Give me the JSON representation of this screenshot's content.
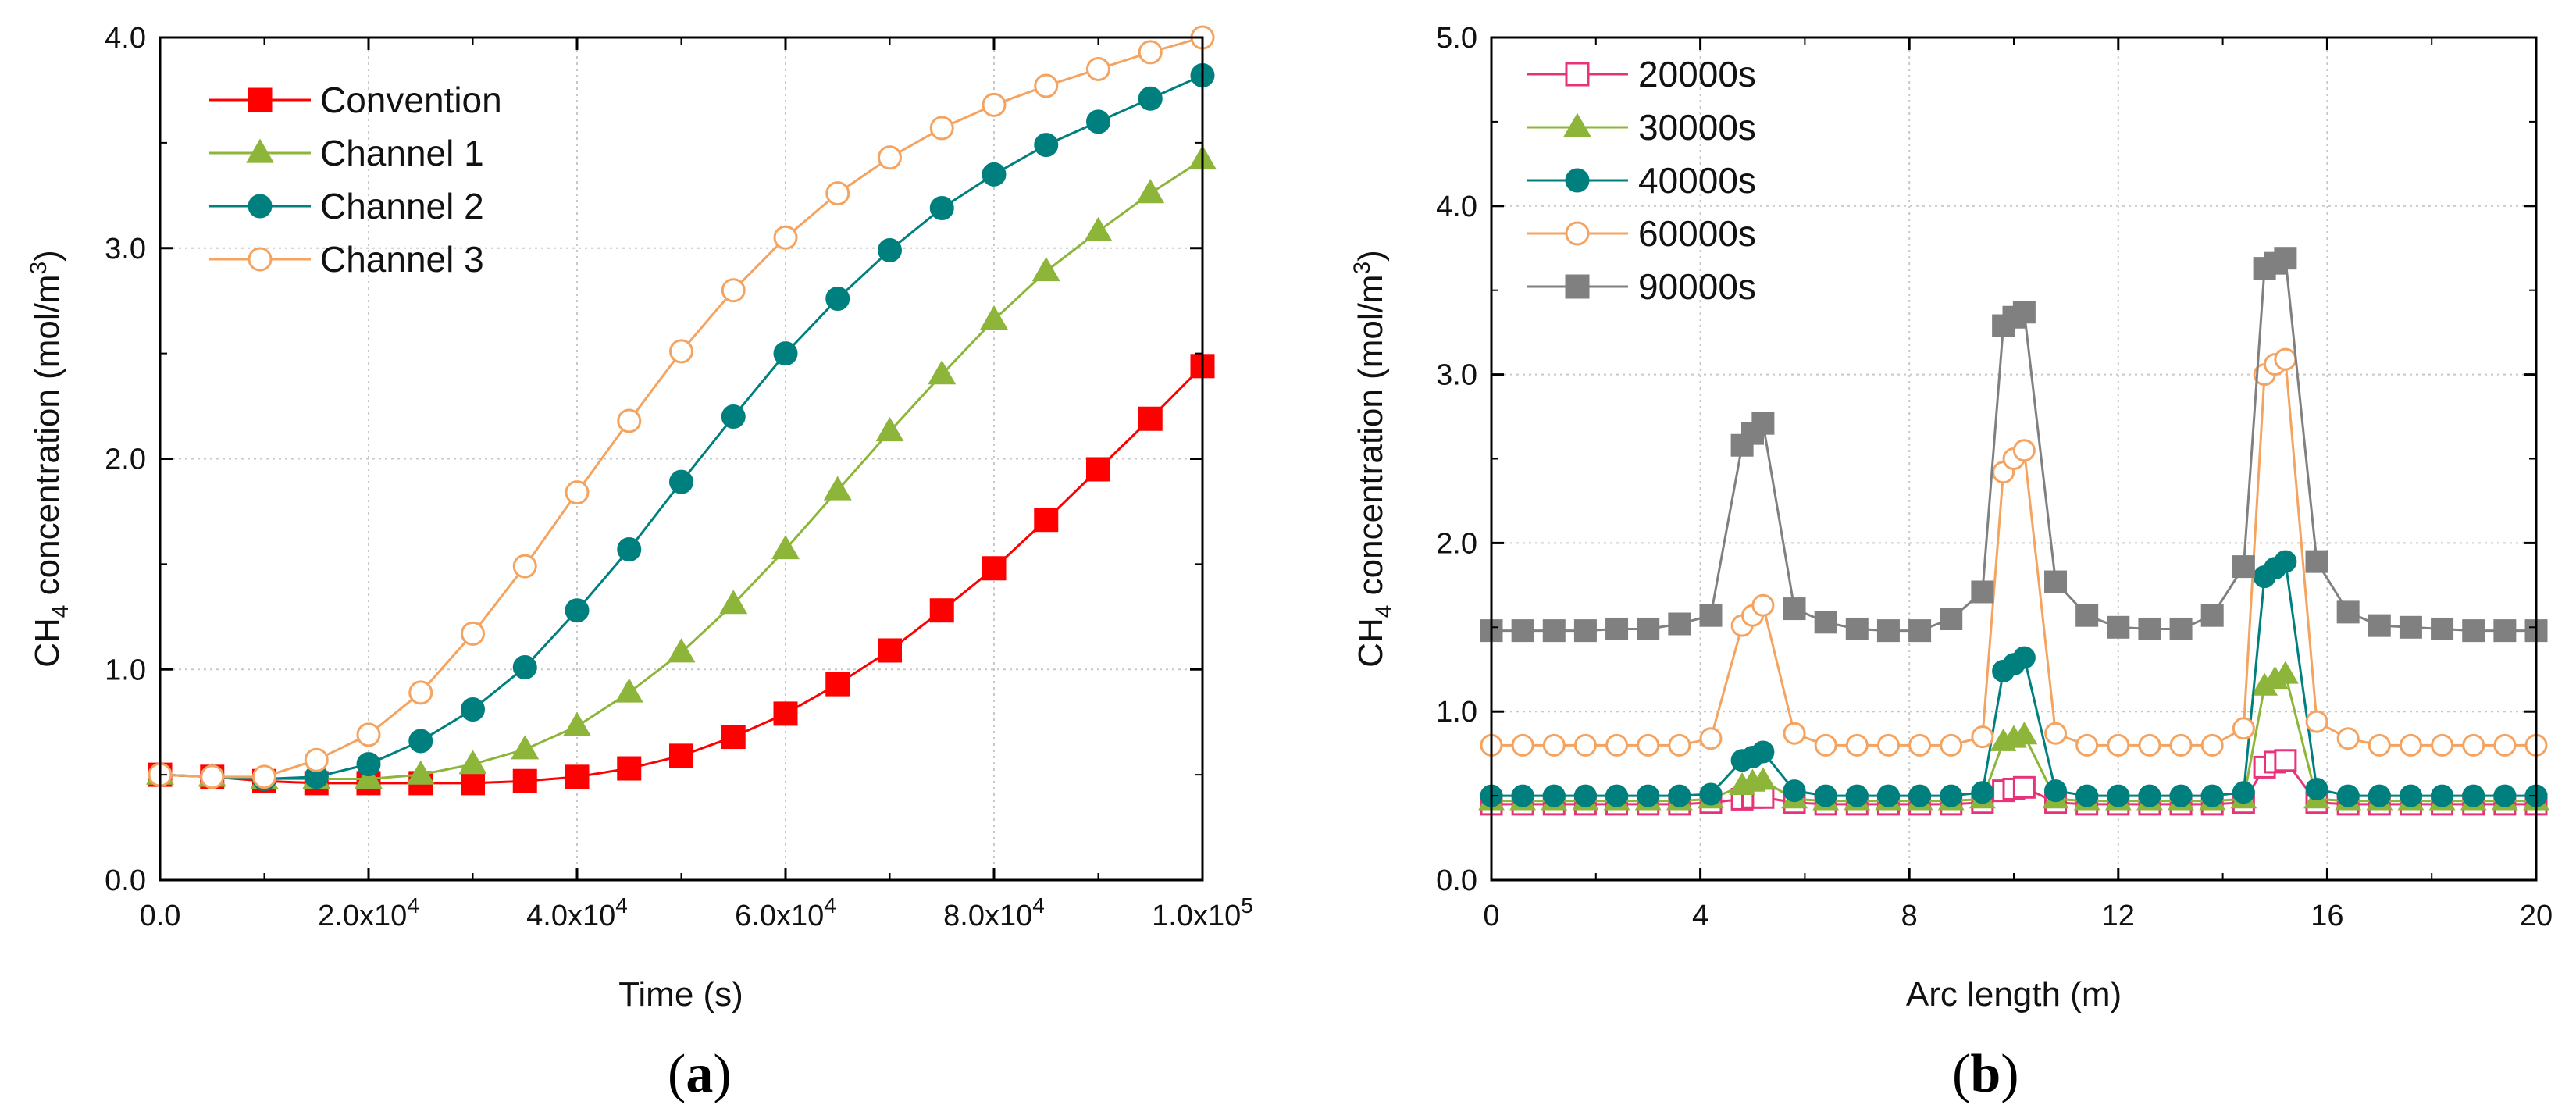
{
  "chart_data": [
    {
      "type": "line",
      "panel_label": "a",
      "xlabel": "Time (s)",
      "ylabel_parts": [
        "CH",
        "4",
        " concentration (mol/m",
        "3",
        ")"
      ],
      "xlim": [
        0,
        100000
      ],
      "ylim": [
        0,
        4
      ],
      "x_ticks": [
        0,
        20000,
        40000,
        60000,
        80000,
        100000
      ],
      "x_tick_labels": [
        {
          "base": "0.0",
          "exp": ""
        },
        {
          "base": "2.0x10",
          "exp": "4"
        },
        {
          "base": "4.0x10",
          "exp": "4"
        },
        {
          "base": "6.0x10",
          "exp": "4"
        },
        {
          "base": "8.0x10",
          "exp": "4"
        },
        {
          "base": "1.0x10",
          "exp": "5"
        }
      ],
      "y_ticks": [
        0,
        1,
        2,
        3,
        4
      ],
      "y_tick_labels": [
        "0.0",
        "1.0",
        "2.0",
        "3.0",
        "4.0"
      ],
      "grid": true,
      "legend_position": "top-left",
      "x": [
        0,
        5000,
        10000,
        15000,
        20000,
        25000,
        30000,
        35000,
        40000,
        45000,
        50000,
        55000,
        60000,
        65000,
        70000,
        75000,
        80000,
        85000,
        90000,
        95000,
        100000
      ],
      "series": [
        {
          "name": "Convention",
          "color": "#ff0000",
          "marker": "square",
          "filled": true,
          "values": [
            0.5,
            0.49,
            0.47,
            0.46,
            0.46,
            0.46,
            0.46,
            0.47,
            0.49,
            0.53,
            0.59,
            0.68,
            0.79,
            0.93,
            1.09,
            1.28,
            1.48,
            1.71,
            1.95,
            2.19,
            2.44
          ]
        },
        {
          "name": "Channel 1",
          "color": "#8db53a",
          "marker": "triangle",
          "filled": true,
          "values": [
            0.5,
            0.49,
            0.48,
            0.48,
            0.48,
            0.5,
            0.55,
            0.62,
            0.73,
            0.89,
            1.08,
            1.31,
            1.57,
            1.85,
            2.13,
            2.4,
            2.66,
            2.89,
            3.08,
            3.26,
            3.42
          ]
        },
        {
          "name": "Channel 2",
          "color": "#007f7f",
          "marker": "circle",
          "filled": true,
          "values": [
            0.5,
            0.49,
            0.48,
            0.49,
            0.55,
            0.66,
            0.81,
            1.01,
            1.28,
            1.57,
            1.89,
            2.2,
            2.5,
            2.76,
            2.99,
            3.19,
            3.35,
            3.49,
            3.6,
            3.71,
            3.82
          ]
        },
        {
          "name": "Channel 3",
          "color": "#f4a460",
          "marker": "circle",
          "filled": false,
          "values": [
            0.5,
            0.49,
            0.49,
            0.57,
            0.69,
            0.89,
            1.17,
            1.49,
            1.84,
            2.18,
            2.51,
            2.8,
            3.05,
            3.26,
            3.43,
            3.57,
            3.68,
            3.77,
            3.85,
            3.93,
            4.0
          ]
        }
      ]
    },
    {
      "type": "line",
      "panel_label": "b",
      "xlabel": "Arc length (m)",
      "ylabel_parts": [
        "CH",
        "4",
        " concentration (mol/m",
        "3",
        ")"
      ],
      "xlim": [
        0,
        20
      ],
      "ylim": [
        0,
        5
      ],
      "x_ticks": [
        0,
        4,
        8,
        12,
        16,
        20
      ],
      "x_tick_labels": [
        "0",
        "4",
        "8",
        "12",
        "16",
        "20"
      ],
      "y_ticks": [
        0,
        1,
        2,
        3,
        4,
        5
      ],
      "y_tick_labels": [
        "0.0",
        "1.0",
        "2.0",
        "3.0",
        "4.0",
        "5.0"
      ],
      "grid": true,
      "legend_position": "top-left",
      "x": [
        0,
        0.6,
        1.2,
        1.8,
        2.4,
        3.0,
        3.6,
        4.2,
        4.8,
        5.0,
        5.2,
        5.8,
        6.4,
        7.0,
        7.6,
        8.2,
        8.8,
        9.4,
        9.8,
        10.0,
        10.2,
        10.8,
        11.4,
        12.0,
        12.6,
        13.2,
        13.8,
        14.4,
        14.8,
        15.0,
        15.2,
        15.8,
        16.4,
        17.0,
        17.6,
        18.2,
        18.8,
        19.4,
        20.0
      ],
      "series": [
        {
          "name": "20000s",
          "color": "#e8337a",
          "marker": "square",
          "filled": false,
          "values": [
            0.45,
            0.45,
            0.45,
            0.45,
            0.45,
            0.45,
            0.45,
            0.46,
            0.48,
            0.49,
            0.49,
            0.46,
            0.45,
            0.45,
            0.45,
            0.45,
            0.45,
            0.46,
            0.53,
            0.54,
            0.55,
            0.46,
            0.45,
            0.45,
            0.45,
            0.45,
            0.45,
            0.46,
            0.67,
            0.7,
            0.71,
            0.46,
            0.45,
            0.45,
            0.45,
            0.45,
            0.45,
            0.45,
            0.45
          ]
        },
        {
          "name": "30000s",
          "color": "#8db53a",
          "marker": "triangle",
          "filled": true,
          "values": [
            0.47,
            0.47,
            0.47,
            0.47,
            0.47,
            0.47,
            0.47,
            0.48,
            0.56,
            0.58,
            0.59,
            0.48,
            0.47,
            0.47,
            0.47,
            0.47,
            0.47,
            0.48,
            0.82,
            0.84,
            0.86,
            0.48,
            0.47,
            0.47,
            0.47,
            0.47,
            0.47,
            0.48,
            1.15,
            1.19,
            1.22,
            0.48,
            0.47,
            0.47,
            0.47,
            0.47,
            0.47,
            0.47,
            0.47
          ]
        },
        {
          "name": "40000s",
          "color": "#007f7f",
          "marker": "circle",
          "filled": true,
          "values": [
            0.5,
            0.5,
            0.5,
            0.5,
            0.5,
            0.5,
            0.5,
            0.51,
            0.71,
            0.73,
            0.76,
            0.53,
            0.5,
            0.5,
            0.5,
            0.5,
            0.5,
            0.52,
            1.24,
            1.28,
            1.32,
            0.53,
            0.5,
            0.5,
            0.5,
            0.5,
            0.5,
            0.52,
            1.8,
            1.85,
            1.89,
            0.54,
            0.5,
            0.5,
            0.5,
            0.5,
            0.5,
            0.5,
            0.5
          ]
        },
        {
          "name": "60000s",
          "color": "#f4a460",
          "marker": "circle",
          "filled": false,
          "values": [
            0.8,
            0.8,
            0.8,
            0.8,
            0.8,
            0.8,
            0.8,
            0.84,
            1.51,
            1.57,
            1.63,
            0.87,
            0.8,
            0.8,
            0.8,
            0.8,
            0.8,
            0.85,
            2.42,
            2.5,
            2.55,
            0.87,
            0.8,
            0.8,
            0.8,
            0.8,
            0.8,
            0.9,
            3.0,
            3.06,
            3.09,
            0.94,
            0.84,
            0.8,
            0.8,
            0.8,
            0.8,
            0.8,
            0.8
          ]
        },
        {
          "name": "90000s",
          "color": "#808080",
          "marker": "square",
          "filled": true,
          "values": [
            1.48,
            1.48,
            1.48,
            1.48,
            1.49,
            1.49,
            1.52,
            1.57,
            2.58,
            2.65,
            2.71,
            1.61,
            1.53,
            1.49,
            1.48,
            1.48,
            1.55,
            1.71,
            3.29,
            3.34,
            3.37,
            1.77,
            1.57,
            1.5,
            1.49,
            1.49,
            1.57,
            1.86,
            3.63,
            3.66,
            3.69,
            1.89,
            1.59,
            1.51,
            1.5,
            1.49,
            1.48,
            1.48,
            1.48
          ]
        }
      ]
    }
  ]
}
